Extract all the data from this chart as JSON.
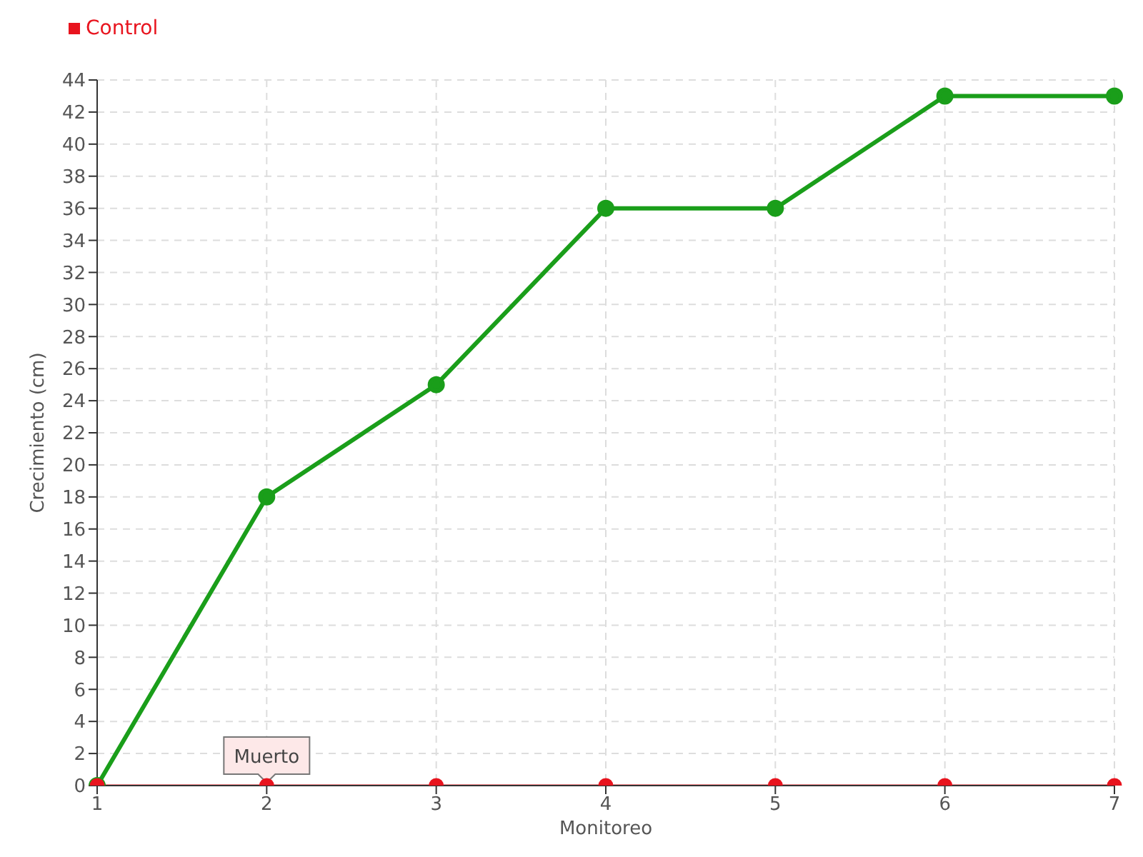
{
  "chart_data": {
    "type": "line",
    "xlabel": "Monitoreo",
    "ylabel": "Crecimiento (cm)",
    "categories": [
      "1",
      "2",
      "3",
      "4",
      "5",
      "6",
      "7"
    ],
    "series": [
      {
        "color": "#1a9e1a",
        "values": [
          0,
          18,
          25,
          36,
          36,
          43,
          43
        ]
      },
      {
        "name": "Control",
        "color": "#e8141e",
        "values": [
          0,
          0,
          0,
          0,
          0,
          0,
          0
        ]
      }
    ],
    "ylim": [
      0,
      44
    ],
    "yticks": [
      0,
      2,
      4,
      6,
      8,
      10,
      12,
      14,
      16,
      18,
      20,
      22,
      24,
      26,
      28,
      30,
      32,
      34,
      36,
      38,
      40,
      42,
      44
    ],
    "grid": true,
    "legend": "top left",
    "marker": "circle",
    "line_style": "solid",
    "annotations": [
      {
        "text": "Muerto",
        "x": "2",
        "y": 0
      }
    ]
  }
}
